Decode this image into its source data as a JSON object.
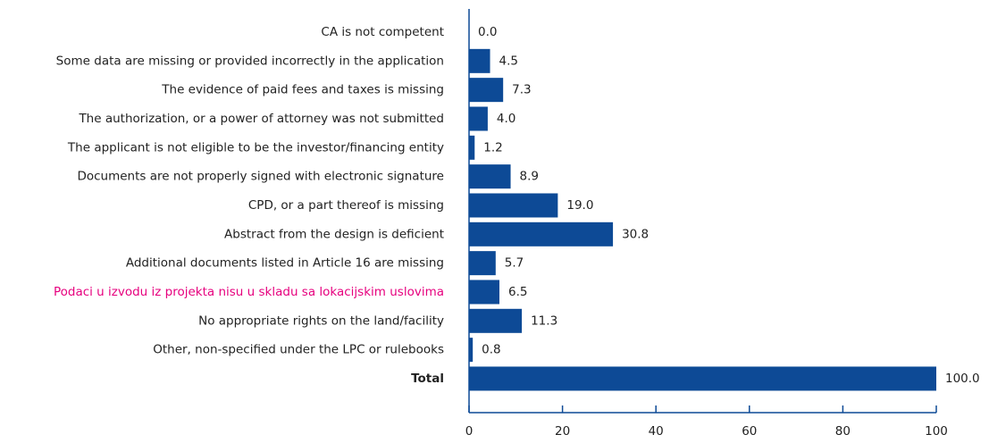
{
  "chart_data": {
    "type": "hbar",
    "categories": [
      "CA is not competent",
      "Some data are missing or provided incorrectly in the application",
      "The evidence of paid fees and taxes is missing",
      "The authorization, or a power of attorney was not submitted",
      "The applicant is not eligible to be the investor/financing entity",
      "Documents are not properly signed with electronic signature",
      "CPD, or a part thereof is missing",
      "Abstract from the design is deficient",
      "Additional documents listed in Article 16 are missing",
      "Podaci u izvodu iz projekta nisu u skladu sa lokacijskim uslovima",
      "No appropriate rights on the land/facility",
      "Other, non-specified under the LPC or rulebooks",
      "Total"
    ],
    "values": [
      0,
      4.5,
      7.3,
      4.0,
      1.2,
      8.9,
      19.0,
      30.8,
      5.7,
      6.5,
      11.3,
      0.8,
      100
    ],
    "value_labels": [
      "0.0",
      "4.5",
      "7.3",
      "4.0",
      "1.2",
      "8.9",
      "19.0",
      "30.8",
      "5.7",
      "6.5",
      "11.3",
      "0.8",
      "100.0"
    ],
    "color": "#0d4a96",
    "xlim": [
      0,
      100
    ],
    "xticks": [
      0,
      20,
      40,
      60,
      80,
      100
    ]
  }
}
